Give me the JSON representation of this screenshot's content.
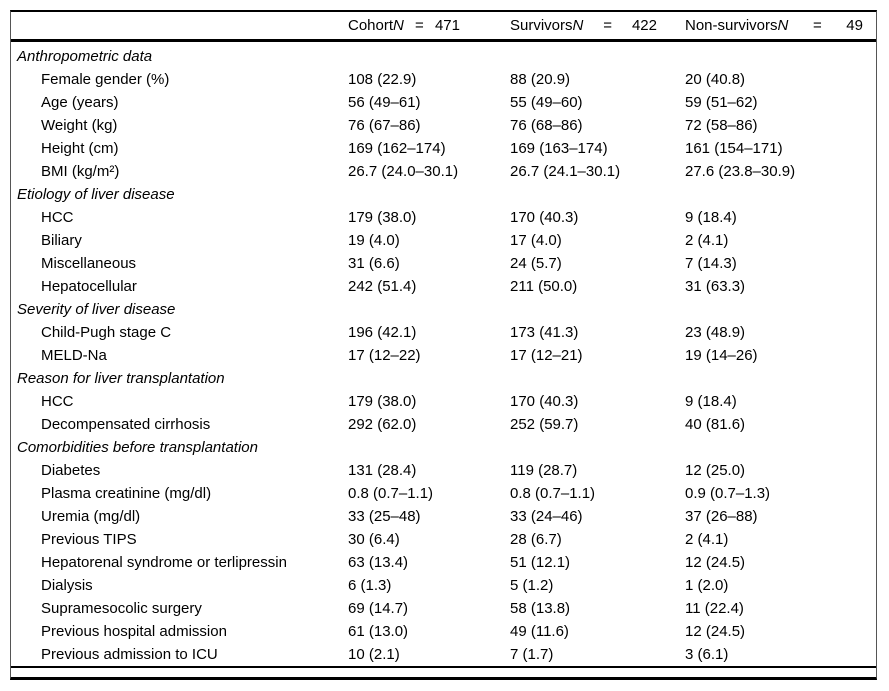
{
  "table": {
    "header": {
      "columns": [
        {
          "label": "Cohort",
          "n_italic": "N",
          "equals": "=",
          "count": "471"
        },
        {
          "label": "Survivors",
          "n_italic": "N",
          "equals": "=",
          "count": "422"
        },
        {
          "label": "Non-survivors",
          "n_italic": "N",
          "equals": "=",
          "count": "49"
        }
      ]
    },
    "sections": [
      {
        "title": "Anthropometric data",
        "rows": [
          {
            "label": "Female gender (%)",
            "cohort": "108 (22.9)",
            "survivors": "88 (20.9)",
            "non_survivors": "20 (40.8)"
          },
          {
            "label": "Age (years)",
            "cohort": "56 (49–61)",
            "survivors": "55 (49–60)",
            "non_survivors": "59 (51–62)"
          },
          {
            "label": "Weight (kg)",
            "cohort": "76 (67–86)",
            "survivors": "76 (68–86)",
            "non_survivors": "72 (58–86)"
          },
          {
            "label": "Height (cm)",
            "cohort": "169 (162–174)",
            "survivors": "169 (163–174)",
            "non_survivors": "161 (154–171)"
          },
          {
            "label": "BMI (kg/m²)",
            "cohort": "26.7 (24.0–30.1)",
            "survivors": "26.7 (24.1–30.1)",
            "non_survivors": "27.6 (23.8–30.9)"
          }
        ]
      },
      {
        "title": "Etiology of liver disease",
        "rows": [
          {
            "label": "HCC",
            "cohort": "179 (38.0)",
            "survivors": "170 (40.3)",
            "non_survivors": "9 (18.4)"
          },
          {
            "label": "Biliary",
            "cohort": "19 (4.0)",
            "survivors": "17 (4.0)",
            "non_survivors": "2 (4.1)"
          },
          {
            "label": "Miscellaneous",
            "cohort": "31 (6.6)",
            "survivors": "24 (5.7)",
            "non_survivors": "7 (14.3)"
          },
          {
            "label": "Hepatocellular",
            "cohort": "242 (51.4)",
            "survivors": "211 (50.0)",
            "non_survivors": "31 (63.3)"
          }
        ]
      },
      {
        "title": "Severity of liver disease",
        "rows": [
          {
            "label": "Child-Pugh stage C",
            "cohort": "196 (42.1)",
            "survivors": "173 (41.3)",
            "non_survivors": "23 (48.9)"
          },
          {
            "label": "MELD-Na",
            "cohort": "17 (12–22)",
            "survivors": "17 (12–21)",
            "non_survivors": "19 (14–26)"
          }
        ]
      },
      {
        "title": "Reason for liver transplantation",
        "rows": [
          {
            "label": "HCC",
            "cohort": "179 (38.0)",
            "survivors": "170 (40.3)",
            "non_survivors": "9 (18.4)"
          },
          {
            "label": "Decompensated cirrhosis",
            "cohort": "292 (62.0)",
            "survivors": "252 (59.7)",
            "non_survivors": "40 (81.6)"
          }
        ]
      },
      {
        "title": "Comorbidities before transplantation",
        "rows": [
          {
            "label": "Diabetes",
            "cohort": "131 (28.4)",
            "survivors": "119 (28.7)",
            "non_survivors": "12 (25.0)"
          },
          {
            "label": "Plasma creatinine (mg/dl)",
            "cohort": "0.8 (0.7–1.1)",
            "survivors": "0.8 (0.7–1.1)",
            "non_survivors": "0.9 (0.7–1.3)"
          },
          {
            "label": "Uremia (mg/dl)",
            "cohort": "33 (25–48)",
            "survivors": "33 (24–46)",
            "non_survivors": "37 (26–88)"
          },
          {
            "label": "Previous TIPS",
            "cohort": "30 (6.4)",
            "survivors": "28 (6.7)",
            "non_survivors": "2 (4.1)"
          },
          {
            "label": "Hepatorenal syndrome or terlipressin",
            "cohort": "63 (13.4)",
            "survivors": "51 (12.1)",
            "non_survivors": "12 (24.5)"
          },
          {
            "label": "Dialysis",
            "cohort": "6 (1.3)",
            "survivors": "5 (1.2)",
            "non_survivors": "1 (2.0)"
          },
          {
            "label": "Supramesocolic surgery",
            "cohort": "69 (14.7)",
            "survivors": "58 (13.8)",
            "non_survivors": "11 (22.4)"
          },
          {
            "label": "Previous hospital admission",
            "cohort": "61 (13.0)",
            "survivors": "49 (11.6)",
            "non_survivors": "12 (24.5)"
          },
          {
            "label": "Previous admission to ICU",
            "cohort": "10 (2.1)",
            "survivors": "7 (1.7)",
            "non_survivors": "3 (6.1)"
          }
        ]
      }
    ]
  }
}
